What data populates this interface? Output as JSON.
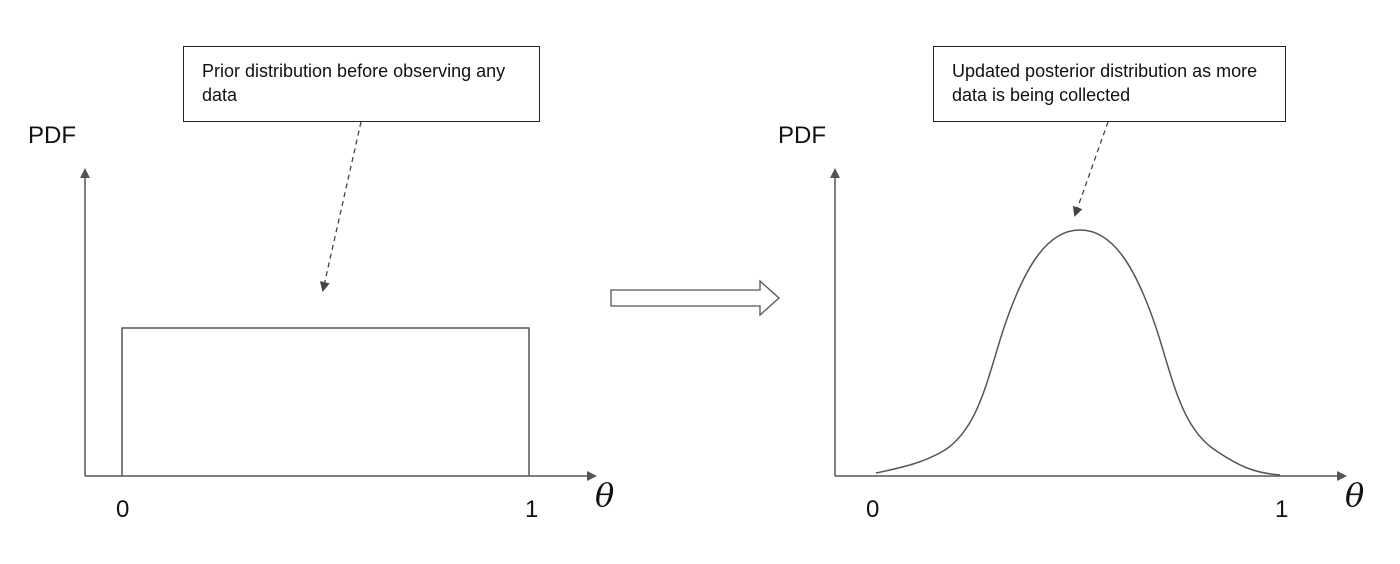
{
  "left_panel": {
    "annotation": "Prior distribution before observing any data",
    "y_label": "PDF",
    "x_label": "θ",
    "x_ticks": [
      "0",
      "1"
    ],
    "distribution": "uniform"
  },
  "transition": {
    "icon": "hollow-right-arrow-icon"
  },
  "right_panel": {
    "annotation": "Updated posterior distribution as more data is being collected",
    "y_label": "PDF",
    "x_label": "θ",
    "x_ticks": [
      "0",
      "1"
    ],
    "distribution": "bell-shaped"
  },
  "colors": {
    "line": "#555555",
    "text": "#111111"
  }
}
